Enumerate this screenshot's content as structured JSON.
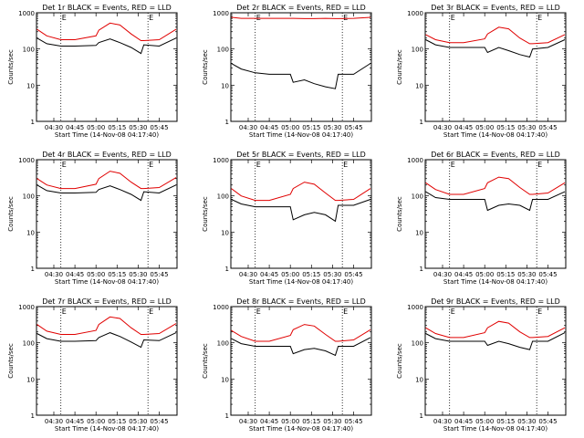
{
  "figure": {
    "background": "#ffffff",
    "axis_color": "#000000",
    "events_color": "#000000",
    "lld_color": "#e00000"
  },
  "chart_data": [
    {
      "type": "line",
      "title": "Det 1r BLACK = Events, RED = LLD",
      "xlabel": "Start Time (14-Nov-08 04:17:40)",
      "ylabel": "Counts/sec",
      "yscale": "log",
      "ylim": [
        1,
        1000
      ],
      "xlim": [
        "04:17:40",
        "05:57:40"
      ],
      "x_ticks": [
        "04:30",
        "04:45",
        "05:00",
        "05:15",
        "05:30",
        "05:45"
      ],
      "y_ticks": [
        "1",
        "10",
        "100",
        "1000"
      ],
      "markers": [
        {
          "time": "04:35",
          "label": "E"
        },
        {
          "time": "05:37",
          "label": "E"
        }
      ],
      "x": [
        "04:18",
        "04:25",
        "04:35",
        "04:45",
        "05:00",
        "05:02",
        "05:10",
        "05:17",
        "05:25",
        "05:32",
        "05:34",
        "05:45",
        "05:57"
      ],
      "series": [
        {
          "name": "Events",
          "color": "#000000",
          "values": [
            200,
            140,
            120,
            120,
            125,
            150,
            190,
            150,
            110,
            75,
            130,
            120,
            200
          ]
        },
        {
          "name": "LLD",
          "color": "#e00000",
          "values": [
            350,
            230,
            180,
            180,
            230,
            330,
            520,
            460,
            260,
            170,
            170,
            180,
            350
          ]
        }
      ],
      "grid": false,
      "legend": "none"
    },
    {
      "type": "line",
      "title": "Det 2r BLACK = Events, RED = LLD",
      "xlabel": "Start Time (14-Nov-08 04:17:40)",
      "ylabel": "Counts/sec",
      "yscale": "log",
      "ylim": [
        1,
        1000
      ],
      "xlim": [
        "04:17:40",
        "05:57:40"
      ],
      "x_ticks": [
        "04:30",
        "04:45",
        "05:00",
        "05:15",
        "05:30",
        "05:45"
      ],
      "y_ticks": [
        "1",
        "10",
        "100",
        "1000"
      ],
      "markers": [
        {
          "time": "04:35",
          "label": "E"
        },
        {
          "time": "05:37",
          "label": "E"
        }
      ],
      "x": [
        "04:18",
        "04:25",
        "04:35",
        "04:45",
        "05:00",
        "05:02",
        "05:10",
        "05:17",
        "05:25",
        "05:32",
        "05:34",
        "05:45",
        "05:57"
      ],
      "series": [
        {
          "name": "Events",
          "color": "#000000",
          "values": [
            40,
            28,
            22,
            20,
            20,
            12,
            14,
            11,
            9,
            8,
            20,
            20,
            40
          ]
        },
        {
          "name": "LLD",
          "color": "#e00000",
          "values": [
            750,
            700,
            700,
            700,
            700,
            700,
            690,
            690,
            700,
            690,
            690,
            700,
            750
          ]
        }
      ],
      "grid": false,
      "legend": "none"
    },
    {
      "type": "line",
      "title": "Det 3r BLACK = Events, RED = LLD",
      "xlabel": "Start Time (14-Nov-08 04:17:40)",
      "ylabel": "Counts/sec",
      "yscale": "log",
      "ylim": [
        1,
        1000
      ],
      "xlim": [
        "04:17:40",
        "05:57:40"
      ],
      "x_ticks": [
        "04:30",
        "04:45",
        "05:00",
        "05:15",
        "05:30",
        "05:45"
      ],
      "y_ticks": [
        "1",
        "10",
        "100",
        "1000"
      ],
      "markers": [
        {
          "time": "04:35",
          "label": "E"
        },
        {
          "time": "05:37",
          "label": "E"
        }
      ],
      "x": [
        "04:18",
        "04:25",
        "04:35",
        "04:45",
        "05:00",
        "05:02",
        "05:10",
        "05:17",
        "05:25",
        "05:32",
        "05:34",
        "05:45",
        "05:57"
      ],
      "series": [
        {
          "name": "Events",
          "color": "#000000",
          "values": [
            180,
            130,
            110,
            110,
            110,
            80,
            110,
            90,
            70,
            60,
            100,
            110,
            180
          ]
        },
        {
          "name": "LLD",
          "color": "#e00000",
          "values": [
            250,
            180,
            150,
            150,
            190,
            260,
            400,
            360,
            200,
            140,
            140,
            150,
            250
          ]
        }
      ],
      "grid": false,
      "legend": "none"
    },
    {
      "type": "line",
      "title": "Det 4r BLACK = Events, RED = LLD",
      "xlabel": "Start Time (14-Nov-08 04:17:40)",
      "ylabel": "Counts/sec",
      "yscale": "log",
      "ylim": [
        1,
        1000
      ],
      "xlim": [
        "04:17:40",
        "05:57:40"
      ],
      "x_ticks": [
        "04:30",
        "04:45",
        "05:00",
        "05:15",
        "05:30",
        "05:45"
      ],
      "y_ticks": [
        "1",
        "10",
        "100",
        "1000"
      ],
      "markers": [
        {
          "time": "04:35",
          "label": "E"
        },
        {
          "time": "05:37",
          "label": "E"
        }
      ],
      "x": [
        "04:18",
        "04:25",
        "04:35",
        "04:45",
        "05:00",
        "05:02",
        "05:10",
        "05:17",
        "05:25",
        "05:32",
        "05:34",
        "05:45",
        "05:57"
      ],
      "series": [
        {
          "name": "Events",
          "color": "#000000",
          "values": [
            200,
            140,
            120,
            120,
            125,
            150,
            190,
            150,
            110,
            75,
            130,
            120,
            200
          ]
        },
        {
          "name": "LLD",
          "color": "#e00000",
          "values": [
            300,
            200,
            160,
            160,
            210,
            300,
            480,
            420,
            240,
            160,
            160,
            170,
            320
          ]
        }
      ],
      "grid": false,
      "legend": "none"
    },
    {
      "type": "line",
      "title": "Det 5r BLACK = Events, RED = LLD",
      "xlabel": "Start Time (14-Nov-08 04:17:40)",
      "ylabel": "Counts/sec",
      "yscale": "log",
      "ylim": [
        1,
        1000
      ],
      "xlim": [
        "04:17:40",
        "05:57:40"
      ],
      "x_ticks": [
        "04:30",
        "04:45",
        "05:00",
        "05:15",
        "05:30",
        "05:45"
      ],
      "y_ticks": [
        "1",
        "10",
        "100",
        "1000"
      ],
      "markers": [
        {
          "time": "04:35",
          "label": "E"
        },
        {
          "time": "05:37",
          "label": "E"
        }
      ],
      "x": [
        "04:18",
        "04:25",
        "04:35",
        "04:45",
        "05:00",
        "05:02",
        "05:10",
        "05:17",
        "05:25",
        "05:32",
        "05:34",
        "05:45",
        "05:57"
      ],
      "series": [
        {
          "name": "Events",
          "color": "#000000",
          "values": [
            80,
            60,
            50,
            50,
            50,
            22,
            30,
            35,
            30,
            20,
            55,
            55,
            80
          ]
        },
        {
          "name": "LLD",
          "color": "#e00000",
          "values": [
            160,
            100,
            75,
            75,
            110,
            160,
            240,
            210,
            120,
            75,
            75,
            80,
            160
          ]
        }
      ],
      "grid": false,
      "legend": "none"
    },
    {
      "type": "line",
      "title": "Det 6r BLACK = Events, RED = LLD",
      "xlabel": "Start Time (14-Nov-08 04:17:40)",
      "ylabel": "Counts/sec",
      "yscale": "log",
      "ylim": [
        1,
        1000
      ],
      "xlim": [
        "04:17:40",
        "05:57:40"
      ],
      "x_ticks": [
        "04:30",
        "04:45",
        "05:00",
        "05:15",
        "05:30",
        "05:45"
      ],
      "y_ticks": [
        "1",
        "10",
        "100",
        "1000"
      ],
      "markers": [
        {
          "time": "04:35",
          "label": "E"
        },
        {
          "time": "05:37",
          "label": "E"
        }
      ],
      "x": [
        "04:18",
        "04:25",
        "04:35",
        "04:45",
        "05:00",
        "05:02",
        "05:10",
        "05:17",
        "05:25",
        "05:32",
        "05:34",
        "05:45",
        "05:57"
      ],
      "series": [
        {
          "name": "Events",
          "color": "#000000",
          "values": [
            130,
            90,
            80,
            80,
            80,
            40,
            55,
            60,
            55,
            40,
            80,
            80,
            130
          ]
        },
        {
          "name": "LLD",
          "color": "#e00000",
          "values": [
            230,
            150,
            110,
            110,
            160,
            230,
            330,
            300,
            170,
            110,
            110,
            120,
            230
          ]
        }
      ],
      "grid": false,
      "legend": "none"
    },
    {
      "type": "line",
      "title": "Det 7r BLACK = Events, RED = LLD",
      "xlabel": "Start Time (14-Nov-08 04:17:40)",
      "ylabel": "Counts/sec",
      "yscale": "log",
      "ylim": [
        1,
        1000
      ],
      "xlim": [
        "04:17:40",
        "05:57:40"
      ],
      "x_ticks": [
        "04:30",
        "04:45",
        "05:00",
        "05:15",
        "05:30",
        "05:45"
      ],
      "y_ticks": [
        "1",
        "10",
        "100",
        "1000"
      ],
      "markers": [
        {
          "time": "04:35",
          "label": "E"
        },
        {
          "time": "05:37",
          "label": "E"
        }
      ],
      "x": [
        "04:18",
        "04:25",
        "04:35",
        "04:45",
        "05:00",
        "05:02",
        "05:10",
        "05:17",
        "05:25",
        "05:32",
        "05:34",
        "05:45",
        "05:57"
      ],
      "series": [
        {
          "name": "Events",
          "color": "#000000",
          "values": [
            180,
            130,
            110,
            110,
            115,
            140,
            190,
            150,
            105,
            75,
            120,
            115,
            190
          ]
        },
        {
          "name": "LLD",
          "color": "#e00000",
          "values": [
            320,
            210,
            170,
            170,
            220,
            320,
            520,
            470,
            260,
            170,
            170,
            180,
            340
          ]
        }
      ],
      "grid": false,
      "legend": "none"
    },
    {
      "type": "line",
      "title": "Det 8r BLACK = Events, RED = LLD",
      "xlabel": "Start Time (14-Nov-08 04:17:40)",
      "ylabel": "Counts/sec",
      "yscale": "log",
      "ylim": [
        1,
        1000
      ],
      "xlim": [
        "04:17:40",
        "05:57:40"
      ],
      "x_ticks": [
        "04:30",
        "04:45",
        "05:00",
        "05:15",
        "05:30",
        "05:45"
      ],
      "y_ticks": [
        "1",
        "10",
        "100",
        "1000"
      ],
      "markers": [
        {
          "time": "04:35",
          "label": "E"
        },
        {
          "time": "05:37",
          "label": "E"
        }
      ],
      "x": [
        "04:18",
        "04:25",
        "04:35",
        "04:45",
        "05:00",
        "05:02",
        "05:10",
        "05:17",
        "05:25",
        "05:32",
        "05:34",
        "05:45",
        "05:57"
      ],
      "series": [
        {
          "name": "Events",
          "color": "#000000",
          "values": [
            130,
            95,
            80,
            80,
            80,
            50,
            65,
            70,
            60,
            45,
            80,
            80,
            140
          ]
        },
        {
          "name": "LLD",
          "color": "#e00000",
          "values": [
            220,
            150,
            110,
            110,
            160,
            230,
            320,
            290,
            170,
            110,
            110,
            120,
            230
          ]
        }
      ],
      "grid": false,
      "legend": "none"
    },
    {
      "type": "line",
      "title": "Det 9r BLACK = Events, RED = LLD",
      "xlabel": "Start Time (14-Nov-08 04:17:40)",
      "ylabel": "Counts/sec",
      "yscale": "log",
      "ylim": [
        1,
        1000
      ],
      "xlim": [
        "04:17:40",
        "05:57:40"
      ],
      "x_ticks": [
        "04:30",
        "04:45",
        "05:00",
        "05:15",
        "05:30",
        "05:45"
      ],
      "y_ticks": [
        "1",
        "10",
        "100",
        "1000"
      ],
      "markers": [
        {
          "time": "04:35",
          "label": "E"
        },
        {
          "time": "05:37",
          "label": "E"
        }
      ],
      "x": [
        "04:18",
        "04:25",
        "04:35",
        "04:45",
        "05:00",
        "05:02",
        "05:10",
        "05:17",
        "05:25",
        "05:32",
        "05:34",
        "05:45",
        "05:57"
      ],
      "series": [
        {
          "name": "Events",
          "color": "#000000",
          "values": [
            180,
            130,
            110,
            110,
            110,
            85,
            110,
            95,
            75,
            65,
            110,
            110,
            190
          ]
        },
        {
          "name": "LLD",
          "color": "#e00000",
          "values": [
            260,
            180,
            140,
            140,
            190,
            260,
            390,
            350,
            200,
            140,
            140,
            150,
            260
          ]
        }
      ],
      "grid": false,
      "legend": "none"
    }
  ]
}
